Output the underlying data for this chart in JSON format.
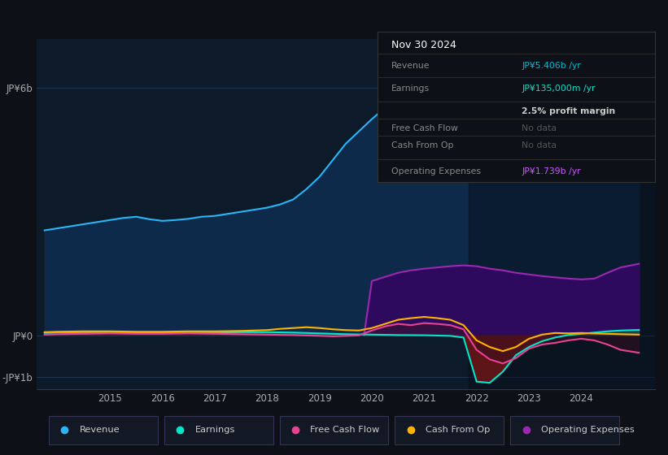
{
  "bg_color": "#0d1117",
  "plot_bg_color": "#0d1a2a",
  "grid_color": "#253a5e",
  "ylim": [
    -1300000000.0,
    7200000000.0
  ],
  "yticks": [
    -1000000000.0,
    0,
    6000000000.0
  ],
  "ytick_labels": [
    "-JP¥1b",
    "JP¥0",
    "JP¥6b"
  ],
  "xlim": [
    2013.6,
    2025.4
  ],
  "xtick_labels": [
    "2015",
    "2016",
    "2017",
    "2018",
    "2019",
    "2020",
    "2021",
    "2022",
    "2023",
    "2024"
  ],
  "xtick_positions": [
    2015,
    2016,
    2017,
    2018,
    2019,
    2020,
    2021,
    2022,
    2023,
    2024
  ],
  "legend": [
    {
      "label": "Revenue",
      "color": "#29b6f6"
    },
    {
      "label": "Earnings",
      "color": "#00e5cc"
    },
    {
      "label": "Free Cash Flow",
      "color": "#e84393"
    },
    {
      "label": "Cash From Op",
      "color": "#ffb300"
    },
    {
      "label": "Operating Expenses",
      "color": "#9c27b0"
    }
  ],
  "revenue_x": [
    2013.75,
    2014.0,
    2014.25,
    2014.5,
    2014.75,
    2015.0,
    2015.25,
    2015.5,
    2015.75,
    2016.0,
    2016.25,
    2016.5,
    2016.75,
    2017.0,
    2017.25,
    2017.5,
    2017.75,
    2018.0,
    2018.25,
    2018.5,
    2018.75,
    2019.0,
    2019.25,
    2019.5,
    2019.75,
    2020.0,
    2020.25,
    2020.5,
    2020.75,
    2021.0,
    2021.25,
    2021.5,
    2021.75,
    2022.0,
    2022.25,
    2022.5,
    2022.75,
    2023.0,
    2023.25,
    2023.5,
    2023.75,
    2024.0,
    2024.25,
    2024.5,
    2024.75,
    2025.1
  ],
  "revenue_y": [
    2550000000.0,
    2600000000.0,
    2650000000.0,
    2700000000.0,
    2750000000.0,
    2800000000.0,
    2850000000.0,
    2880000000.0,
    2820000000.0,
    2780000000.0,
    2800000000.0,
    2830000000.0,
    2880000000.0,
    2900000000.0,
    2950000000.0,
    3000000000.0,
    3050000000.0,
    3100000000.0,
    3180000000.0,
    3300000000.0,
    3550000000.0,
    3850000000.0,
    4250000000.0,
    4650000000.0,
    4950000000.0,
    5250000000.0,
    5520000000.0,
    5650000000.0,
    5580000000.0,
    5500000000.0,
    5450000000.0,
    5380000000.0,
    5280000000.0,
    5050000000.0,
    4550000000.0,
    4250000000.0,
    4050000000.0,
    3850000000.0,
    3780000000.0,
    3820000000.0,
    3980000000.0,
    4080000000.0,
    4280000000.0,
    4780000000.0,
    5180000000.0,
    5406000000.0
  ],
  "earnings_x": [
    2013.75,
    2014.0,
    2014.5,
    2015.0,
    2015.5,
    2016.0,
    2016.5,
    2017.0,
    2017.5,
    2018.0,
    2018.5,
    2019.0,
    2019.5,
    2020.0,
    2020.5,
    2021.0,
    2021.5,
    2021.75,
    2022.0,
    2022.25,
    2022.5,
    2022.75,
    2023.0,
    2023.25,
    2023.5,
    2023.75,
    2024.0,
    2024.25,
    2024.5,
    2024.75,
    2025.1
  ],
  "earnings_y": [
    60000000.0,
    70000000.0,
    70000000.0,
    80000000.0,
    70000000.0,
    60000000.0,
    70000000.0,
    70000000.0,
    80000000.0,
    80000000.0,
    70000000.0,
    50000000.0,
    30000000.0,
    20000000.0,
    10000000.0,
    5000000.0,
    -10000000.0,
    -50000000.0,
    -1120000000.0,
    -1150000000.0,
    -880000000.0,
    -480000000.0,
    -280000000.0,
    -140000000.0,
    -50000000.0,
    10000000.0,
    40000000.0,
    70000000.0,
    100000000.0,
    120000000.0,
    135000000.0
  ],
  "fcf_x": [
    2013.75,
    2014.0,
    2014.5,
    2015.0,
    2015.5,
    2016.0,
    2016.5,
    2017.0,
    2017.5,
    2018.0,
    2018.5,
    2019.0,
    2019.25,
    2019.5,
    2019.75,
    2020.0,
    2020.25,
    2020.5,
    2020.75,
    2021.0,
    2021.25,
    2021.5,
    2021.75,
    2022.0,
    2022.25,
    2022.5,
    2022.75,
    2023.0,
    2023.25,
    2023.5,
    2023.75,
    2024.0,
    2024.25,
    2024.5,
    2024.75,
    2025.1
  ],
  "fcf_y": [
    20000000.0,
    30000000.0,
    40000000.0,
    50000000.0,
    40000000.0,
    40000000.0,
    50000000.0,
    40000000.0,
    30000000.0,
    20000000.0,
    10000000.0,
    -10000000.0,
    -20000000.0,
    -10000000.0,
    0.0,
    120000000.0,
    220000000.0,
    280000000.0,
    250000000.0,
    300000000.0,
    280000000.0,
    250000000.0,
    150000000.0,
    -350000000.0,
    -580000000.0,
    -680000000.0,
    -550000000.0,
    -320000000.0,
    -220000000.0,
    -180000000.0,
    -120000000.0,
    -80000000.0,
    -120000000.0,
    -220000000.0,
    -350000000.0,
    -420000000.0
  ],
  "cashop_x": [
    2013.75,
    2014.0,
    2014.5,
    2015.0,
    2015.5,
    2016.0,
    2016.5,
    2017.0,
    2017.5,
    2018.0,
    2018.25,
    2018.5,
    2018.75,
    2019.0,
    2019.25,
    2019.5,
    2019.75,
    2020.0,
    2020.25,
    2020.5,
    2020.75,
    2021.0,
    2021.25,
    2021.5,
    2021.75,
    2022.0,
    2022.25,
    2022.5,
    2022.75,
    2023.0,
    2023.25,
    2023.5,
    2023.75,
    2024.0,
    2024.25,
    2024.5,
    2024.75,
    2025.1
  ],
  "cashop_y": [
    80000000.0,
    90000000.0,
    100000000.0,
    100000000.0,
    90000000.0,
    90000000.0,
    100000000.0,
    100000000.0,
    110000000.0,
    130000000.0,
    160000000.0,
    180000000.0,
    200000000.0,
    180000000.0,
    150000000.0,
    130000000.0,
    120000000.0,
    180000000.0,
    280000000.0,
    380000000.0,
    420000000.0,
    450000000.0,
    420000000.0,
    380000000.0,
    250000000.0,
    -120000000.0,
    -280000000.0,
    -380000000.0,
    -280000000.0,
    -80000000.0,
    20000000.0,
    60000000.0,
    50000000.0,
    60000000.0,
    50000000.0,
    40000000.0,
    30000000.0,
    20000000.0
  ],
  "opex_x": [
    2019.85,
    2020.0,
    2020.25,
    2020.5,
    2020.75,
    2021.0,
    2021.25,
    2021.5,
    2021.75,
    2022.0,
    2022.25,
    2022.5,
    2022.75,
    2023.0,
    2023.25,
    2023.5,
    2023.75,
    2024.0,
    2024.25,
    2024.5,
    2024.75,
    2025.1
  ],
  "opex_y": [
    0.0,
    1320000000.0,
    1420000000.0,
    1520000000.0,
    1580000000.0,
    1620000000.0,
    1650000000.0,
    1680000000.0,
    1700000000.0,
    1680000000.0,
    1620000000.0,
    1580000000.0,
    1520000000.0,
    1480000000.0,
    1440000000.0,
    1410000000.0,
    1380000000.0,
    1360000000.0,
    1380000000.0,
    1520000000.0,
    1650000000.0,
    1739000000.0
  ]
}
